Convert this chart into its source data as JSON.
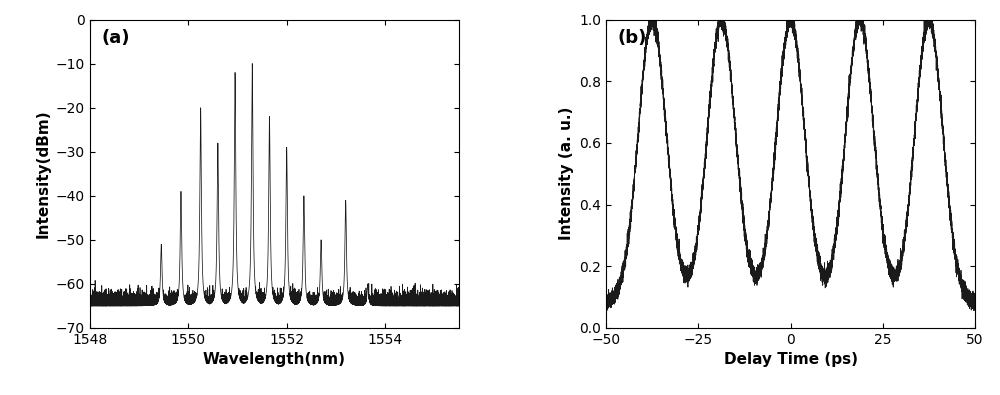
{
  "panel_a": {
    "label": "(a)",
    "xlabel": "Wavelength(nm)",
    "ylabel": "Intensity(dBm)",
    "xlim": [
      1548,
      1555.5
    ],
    "ylim": [
      -70,
      0
    ],
    "xticks": [
      1548,
      1550,
      1552,
      1554
    ],
    "yticks": [
      0,
      -10,
      -20,
      -30,
      -40,
      -50,
      -60,
      -70
    ],
    "peaks": [
      {
        "wl": 1549.45,
        "peak": -51
      },
      {
        "wl": 1549.85,
        "peak": -39
      },
      {
        "wl": 1550.25,
        "peak": -20
      },
      {
        "wl": 1550.6,
        "peak": -28
      },
      {
        "wl": 1550.95,
        "peak": -12
      },
      {
        "wl": 1551.3,
        "peak": -10
      },
      {
        "wl": 1551.65,
        "peak": -22
      },
      {
        "wl": 1552.0,
        "peak": -29
      },
      {
        "wl": 1552.35,
        "peak": -40
      },
      {
        "wl": 1552.7,
        "peak": -50
      },
      {
        "wl": 1553.2,
        "peak": -41
      },
      {
        "wl": 1553.65,
        "peak": -60
      }
    ],
    "noise_floor": -65.0,
    "noise_std": 1.5,
    "peak_hwhm": 0.018,
    "notch_centers": [
      1551.12,
      1551.47
    ],
    "line_color": "#1a1a1a",
    "background_color": "#ffffff"
  },
  "panel_b": {
    "label": "(b)",
    "xlabel": "Delay Time (ps)",
    "ylabel": "Intensity (a. u.)",
    "xlim": [
      -50,
      50
    ],
    "ylim": [
      0,
      1
    ],
    "xticks": [
      -50,
      -25,
      0,
      25,
      50
    ],
    "yticks": [
      0,
      0.2,
      0.4,
      0.6,
      0.8,
      1
    ],
    "pulse_centers": [
      -37.5,
      -18.75,
      0,
      18.75,
      37.5
    ],
    "pulse_sigma": 3.8,
    "pulse_base": 0.08,
    "noise_std": 0.013,
    "line_color": "#1a1a1a",
    "background_color": "#ffffff"
  }
}
